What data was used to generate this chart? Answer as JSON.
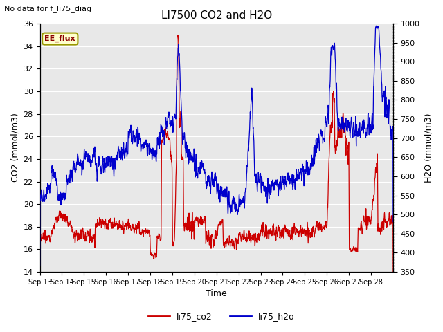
{
  "title": "LI7500 CO2 and H2O",
  "top_left_text": "No data for f_li75_diag",
  "ee_flux_label": "EE_flux",
  "xlabel": "Time",
  "ylabel_left": "CO2 (mmol/m3)",
  "ylabel_right": "H2O (mmol/m3)",
  "ylim_left": [
    14,
    36
  ],
  "ylim_right": [
    350,
    1000
  ],
  "yticks_left": [
    14,
    16,
    18,
    20,
    22,
    24,
    26,
    28,
    30,
    32,
    34,
    36
  ],
  "yticks_right": [
    350,
    400,
    450,
    500,
    550,
    600,
    650,
    700,
    750,
    800,
    850,
    900,
    950,
    1000
  ],
  "xtick_labels": [
    "Sep 13",
    "Sep 14",
    "Sep 15",
    "Sep 16",
    "Sep 17",
    "Sep 18",
    "Sep 19",
    "Sep 20",
    "Sep 21",
    "Sep 22",
    "Sep 23",
    "Sep 24",
    "Sep 25",
    "Sep 26",
    "Sep 27",
    "Sep 28"
  ],
  "legend_labels": [
    "li75_co2",
    "li75_h2o"
  ],
  "line_color_co2": "#cc0000",
  "line_color_h2o": "#0000cc",
  "background_color": "#ffffff",
  "plot_bg_color": "#e8e8e8",
  "grid_color": "#ffffff",
  "title_fontsize": 11,
  "label_fontsize": 9,
  "tick_fontsize": 8,
  "legend_fontsize": 9
}
